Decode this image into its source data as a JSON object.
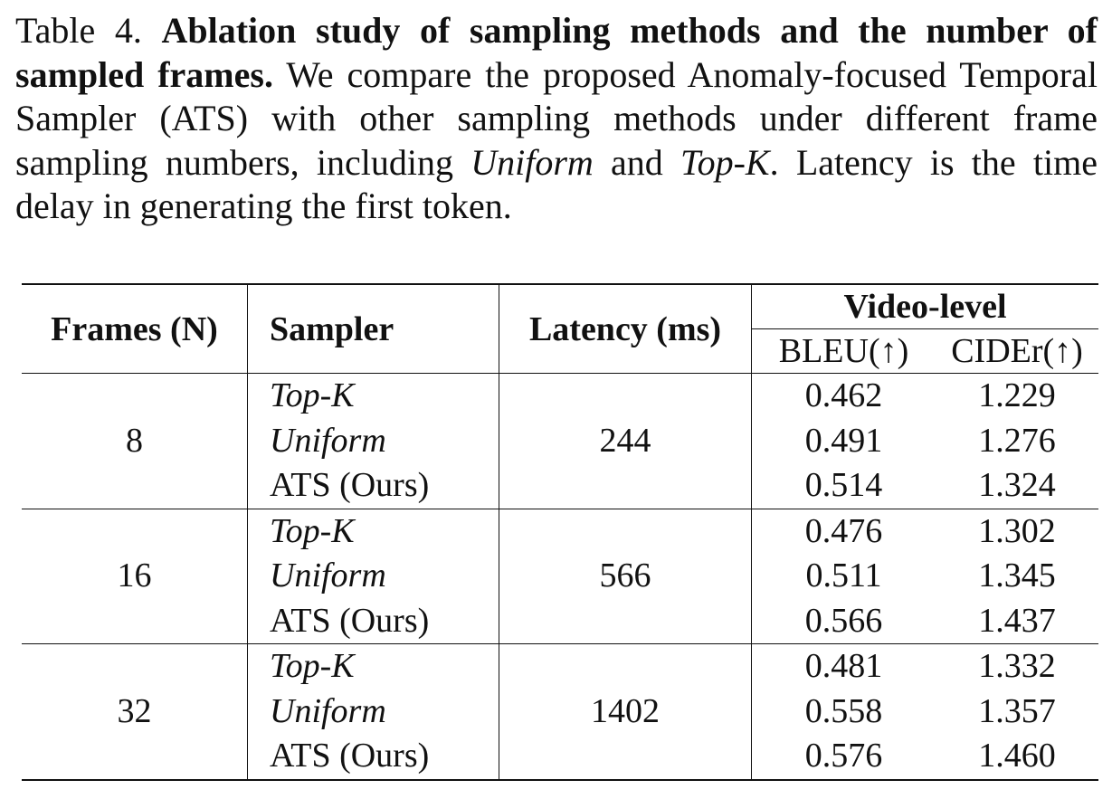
{
  "caption": {
    "label": "Table 4.",
    "title": "Ablation study of sampling methods and the number of sampled frames.",
    "text_1": "We compare the proposed Anomaly-focused Temporal Sampler (ATS) with other sampling methods under different frame sampling numbers, including",
    "method_a": "Uniform",
    "text_and": "and",
    "method_b": "Top-K",
    "text_2": ". Latency is the time delay in generating the first token."
  },
  "table": {
    "headers": {
      "frames": "Frames (N)",
      "sampler": "Sampler",
      "latency": "Latency (ms)",
      "group": "Video-level",
      "bleu": "BLEU(↑)",
      "cider": "CIDEr(↑)"
    },
    "groups": [
      {
        "frames": "8",
        "latency": "244",
        "rows": [
          {
            "sampler": "Top-K",
            "bleu": "0.462",
            "cider": "1.229"
          },
          {
            "sampler": "Uniform",
            "bleu": "0.491",
            "cider": "1.276"
          },
          {
            "sampler": "ATS (Ours)",
            "bleu": "0.514",
            "cider": "1.324"
          }
        ]
      },
      {
        "frames": "16",
        "latency": "566",
        "rows": [
          {
            "sampler": "Top-K",
            "bleu": "0.476",
            "cider": "1.302"
          },
          {
            "sampler": "Uniform",
            "bleu": "0.511",
            "cider": "1.345"
          },
          {
            "sampler": "ATS (Ours)",
            "bleu": "0.566",
            "cider": "1.437"
          }
        ]
      },
      {
        "frames": "32",
        "latency": "1402",
        "rows": [
          {
            "sampler": "Top-K",
            "bleu": "0.481",
            "cider": "1.332"
          },
          {
            "sampler": "Uniform",
            "bleu": "0.558",
            "cider": "1.357"
          },
          {
            "sampler": "ATS (Ours)",
            "bleu": "0.576",
            "cider": "1.460"
          }
        ]
      }
    ]
  }
}
